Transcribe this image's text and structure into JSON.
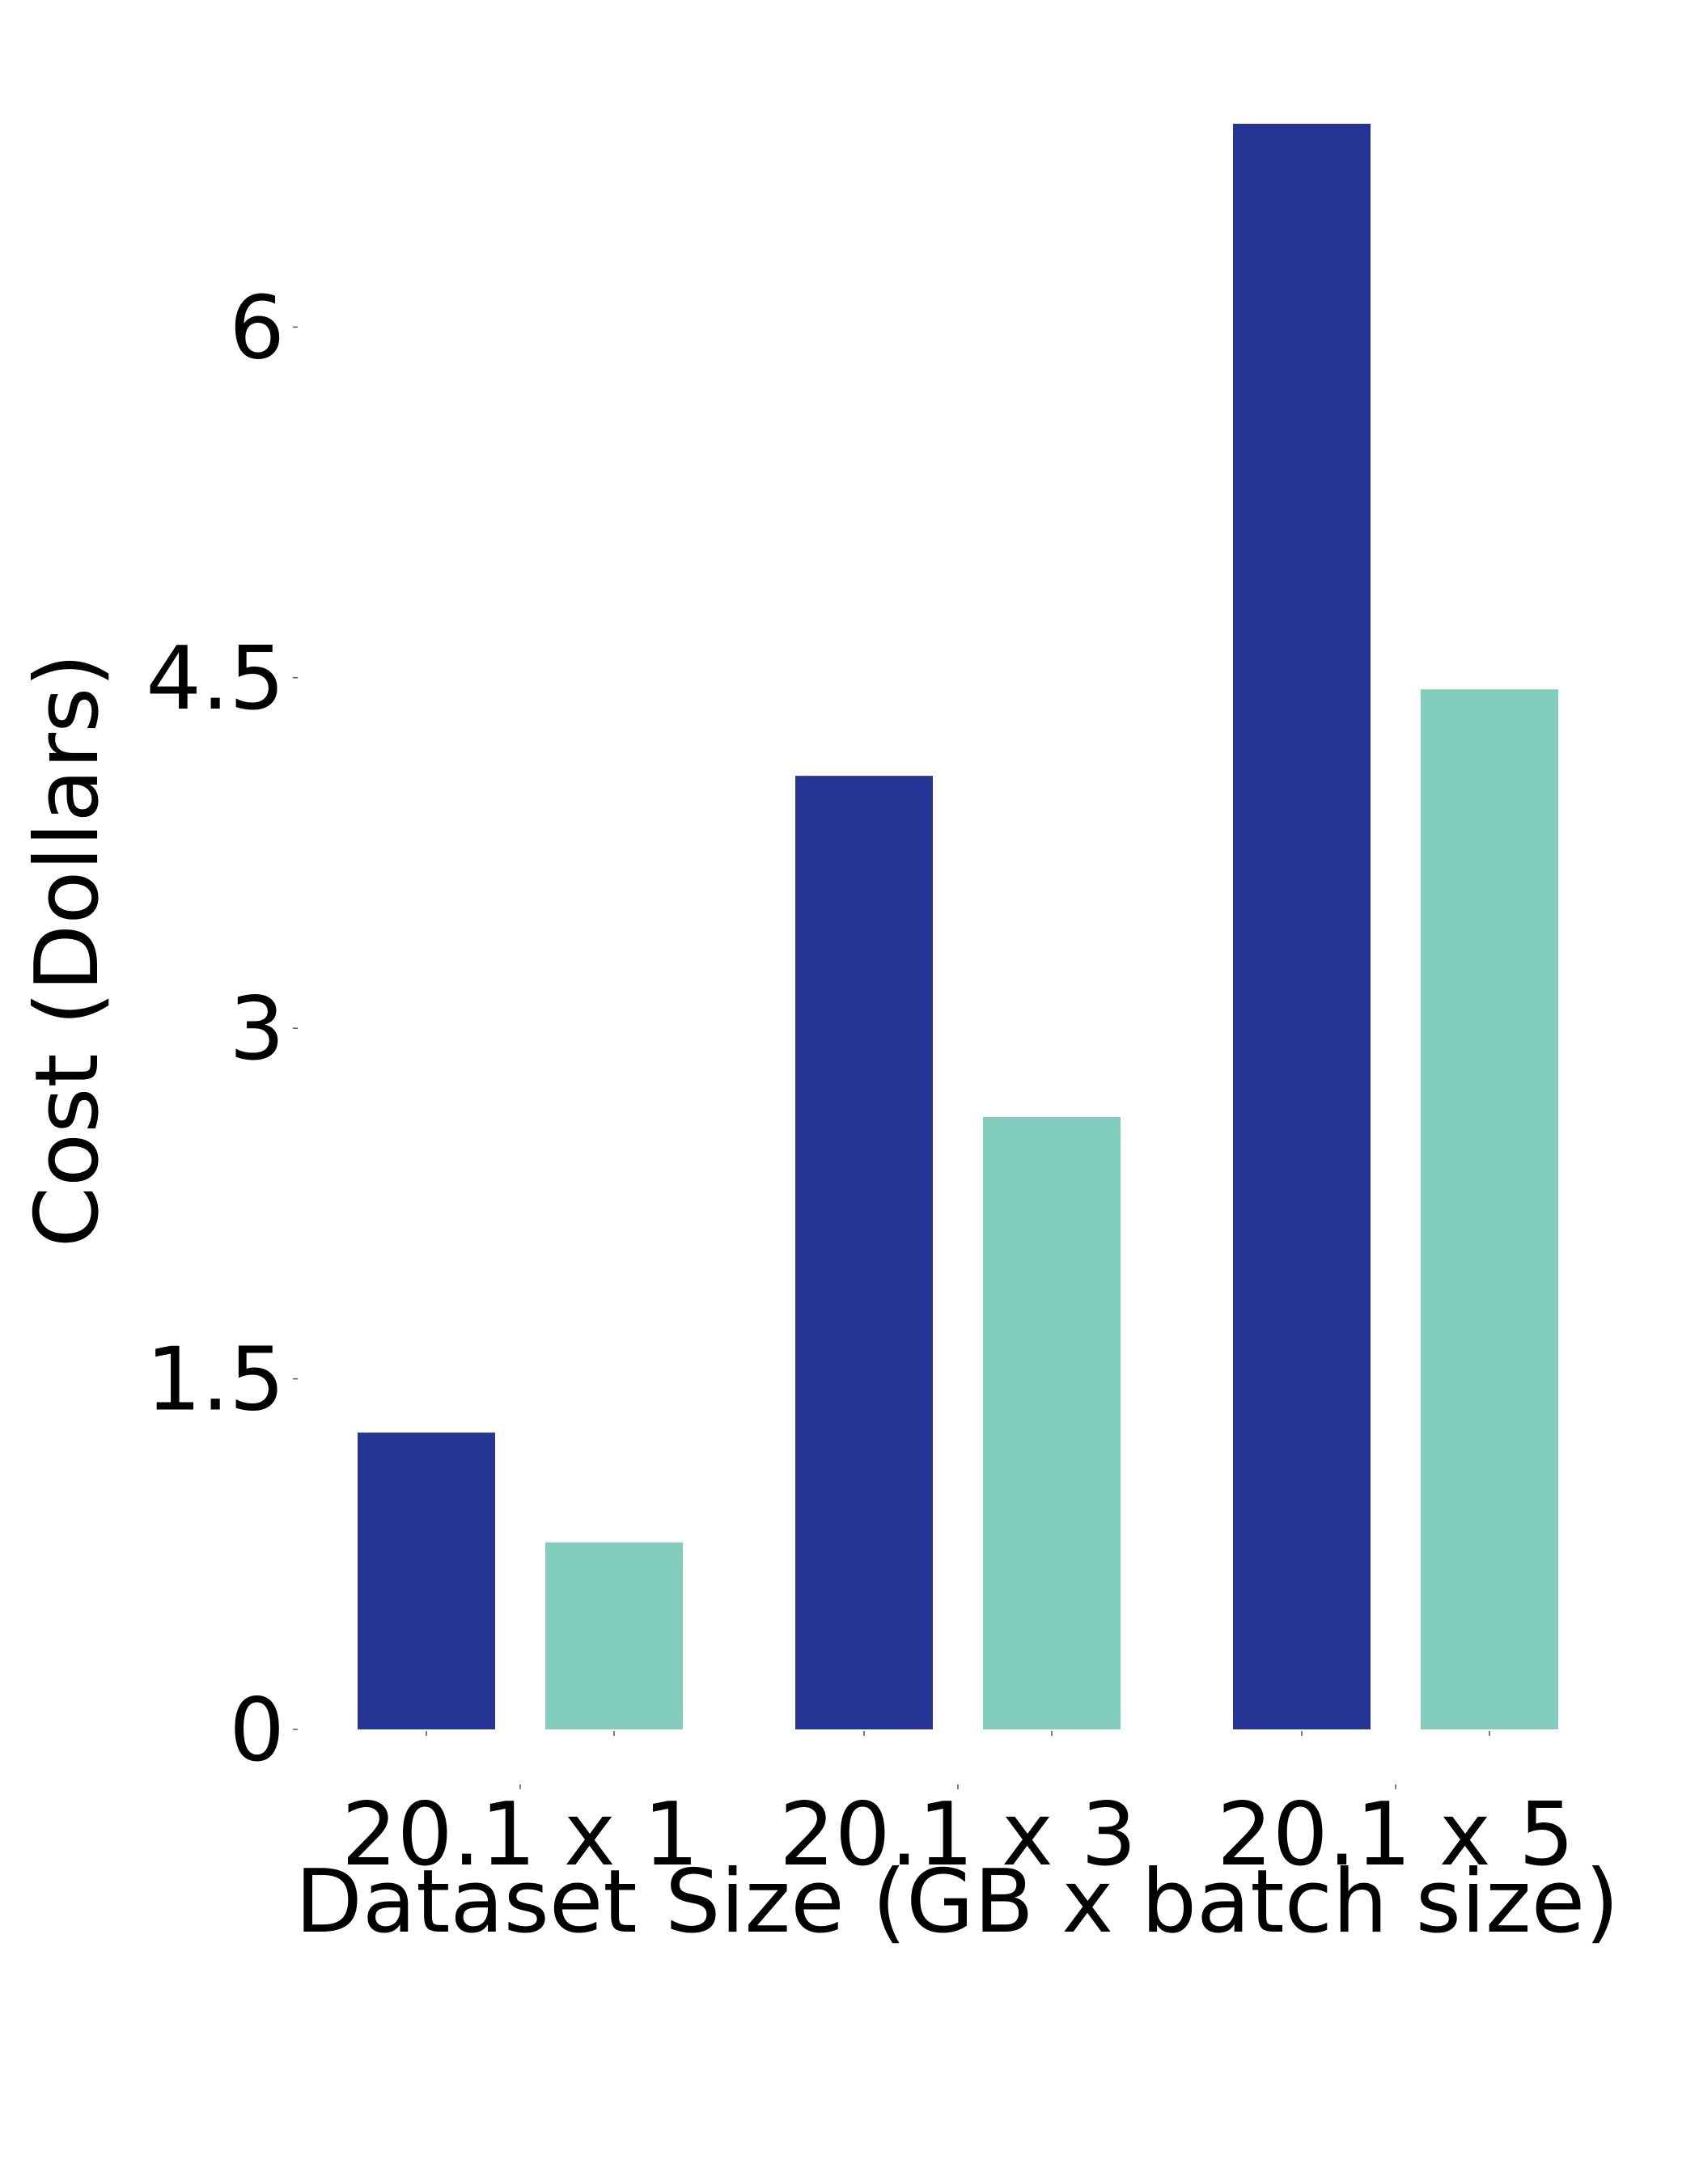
{
  "chart_data": {
    "type": "bar",
    "categories": [
      "20.1 x 1",
      "20.1 x 3",
      "20.1 x 5"
    ],
    "series": [
      {
        "values": [
          1.27,
          4.08,
          6.87
        ],
        "color": "#263593"
      },
      {
        "values": [
          0.8,
          2.62,
          4.45
        ],
        "color": "#82cdbd"
      }
    ],
    "xlabel": "Dataset Size (GB x batch size)",
    "ylabel": "Cost (Dollars)",
    "ylim": [
      0,
      6.87
    ],
    "yticks": [
      0,
      1.5,
      3,
      4.5,
      6
    ],
    "ytick_labels": [
      "0",
      "1.5",
      "3",
      "4.5",
      "6"
    ],
    "grid": false,
    "legend": "none"
  }
}
